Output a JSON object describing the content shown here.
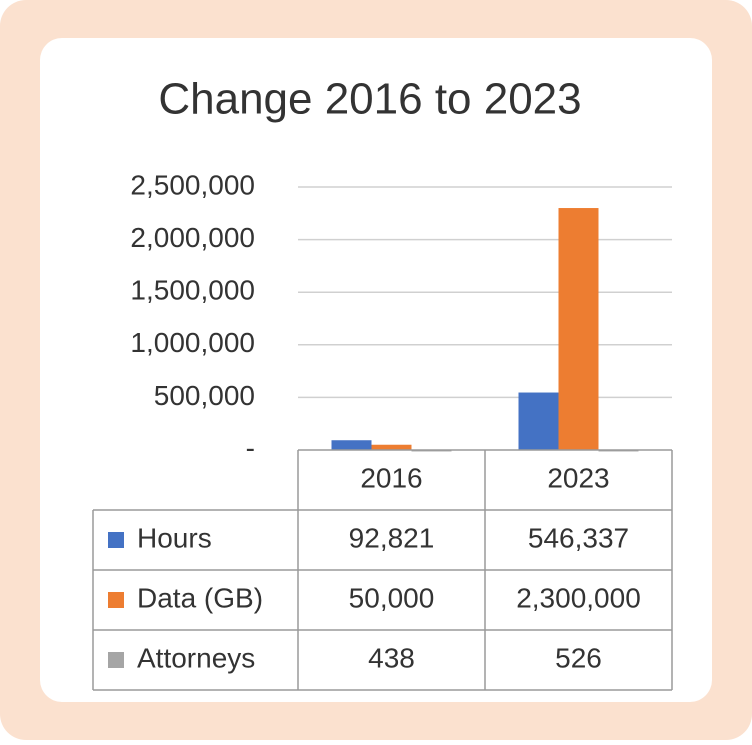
{
  "chart_data": {
    "type": "bar",
    "title": "Change 2016 to 2023",
    "categories": [
      "2016",
      "2023"
    ],
    "series": [
      {
        "name": "Hours",
        "color": "#4472c4",
        "values": [
          92821,
          546337
        ],
        "value_labels": [
          "92,821",
          "546,337"
        ]
      },
      {
        "name": "Data (GB)",
        "color": "#ed7d31",
        "values": [
          50000,
          2300000
        ],
        "value_labels": [
          "50,000",
          "2,300,000"
        ]
      },
      {
        "name": "Attorneys",
        "color": "#a5a5a5",
        "values": [
          438,
          526
        ]
      }
    ],
    "ylim": [
      0,
      2500000
    ],
    "yticks": [
      {
        "value": 0,
        "label": "-"
      },
      {
        "value": 500000,
        "label": "500,000"
      },
      {
        "value": 1000000,
        "label": "1,000,000"
      },
      {
        "value": 1500000,
        "label": "1,500,000"
      },
      {
        "value": 2000000,
        "label": "2,000,000"
      },
      {
        "value": 2500000,
        "label": "2,500,000"
      }
    ],
    "grid": true
  }
}
